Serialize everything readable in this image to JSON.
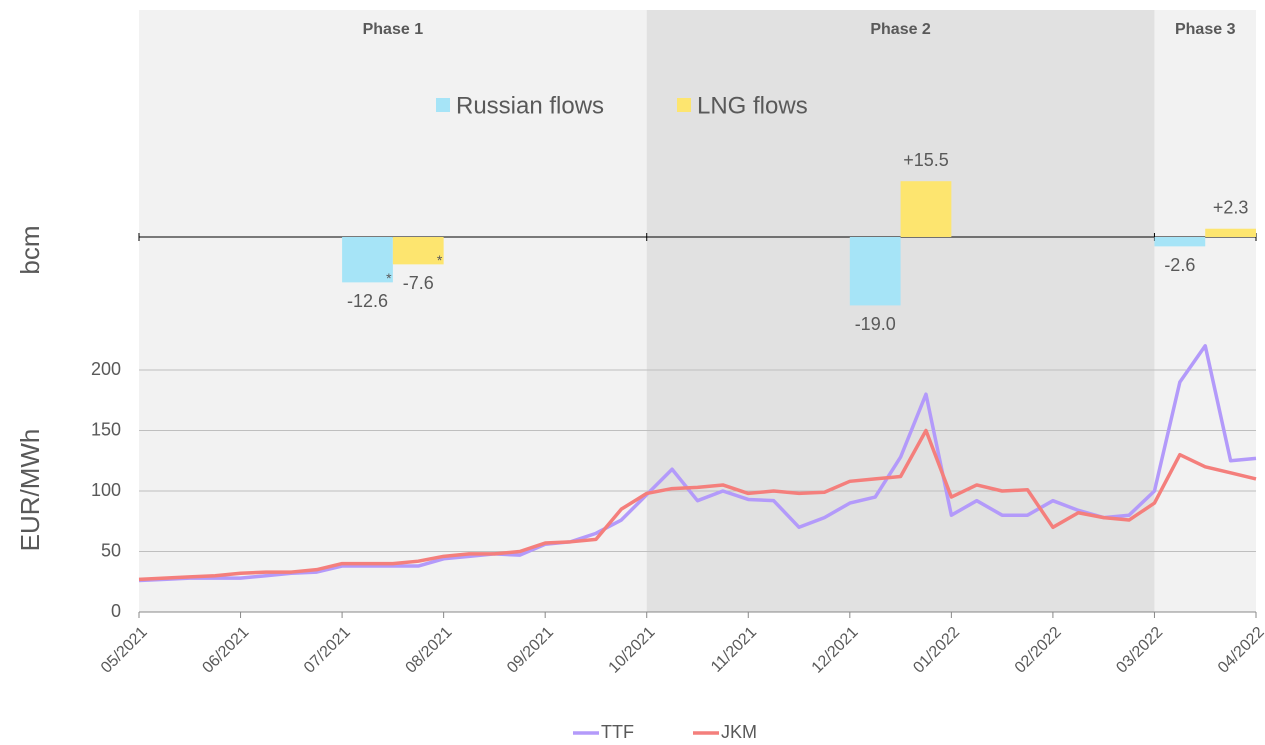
{
  "chart_data": [
    {
      "type": "bar",
      "ylabel": "bcm",
      "categories": [
        "Phase 1",
        "Phase 2",
        "Phase 3"
      ],
      "series": [
        {
          "name": "Russian flows",
          "color": "#a6e4f7",
          "values": [
            -12.6,
            -19.0,
            -2.6
          ],
          "value_labels": [
            "-12.6",
            "-19.0",
            "-2.6"
          ]
        },
        {
          "name": "LNG flows",
          "color": "#fde56f",
          "values": [
            -7.6,
            15.5,
            2.3
          ],
          "value_labels": [
            "-7.6",
            "+15.5",
            "+2.3"
          ]
        }
      ],
      "annotations": [
        "*",
        "*"
      ],
      "ylim": [
        -30,
        50
      ]
    },
    {
      "type": "line",
      "ylabel": "EUR/MWh",
      "x": [
        0,
        0.25,
        0.5,
        0.75,
        1,
        1.25,
        1.5,
        1.75,
        2,
        2.25,
        2.5,
        2.75,
        3,
        3.25,
        3.5,
        3.75,
        4,
        4.25,
        4.5,
        4.75,
        5,
        5.25,
        5.5,
        5.75,
        6,
        6.25,
        6.5,
        6.75,
        7,
        7.25,
        7.5,
        7.75,
        8,
        8.25,
        8.5,
        8.75,
        9,
        9.25,
        9.5,
        9.75,
        10,
        10.25,
        10.5,
        10.75,
        11
      ],
      "series": [
        {
          "name": "TTF",
          "color": "#b39afa",
          "values": [
            26,
            27,
            28,
            28,
            28,
            30,
            32,
            33,
            38,
            38,
            38,
            38,
            44,
            46,
            48,
            47,
            56,
            58,
            65,
            76,
            97,
            118,
            92,
            100,
            93,
            92,
            70,
            78,
            90,
            95,
            128,
            180,
            80,
            92,
            80,
            80,
            92,
            84,
            78,
            80,
            100,
            190,
            220,
            125,
            127
          ]
        },
        {
          "name": "JKM",
          "color": "#f47f7c",
          "values": [
            27,
            28,
            29,
            30,
            32,
            33,
            33,
            35,
            40,
            40,
            40,
            42,
            46,
            48,
            48,
            50,
            57,
            58,
            60,
            85,
            98,
            102,
            103,
            105,
            98,
            100,
            98,
            99,
            108,
            110,
            112,
            150,
            95,
            105,
            100,
            101,
            70,
            82,
            78,
            76,
            90,
            130,
            120,
            115,
            110
          ]
        }
      ],
      "xlim": [
        0,
        11
      ],
      "xticks": [
        {
          "value": 0,
          "label": "05/2021"
        },
        {
          "value": 1,
          "label": "06/2021"
        },
        {
          "value": 2,
          "label": "07/2021"
        },
        {
          "value": 3,
          "label": "08/2021"
        },
        {
          "value": 4,
          "label": "09/2021"
        },
        {
          "value": 5,
          "label": "10/2021"
        },
        {
          "value": 6,
          "label": "11/2021"
        },
        {
          "value": 7,
          "label": "12/2021"
        },
        {
          "value": 8,
          "label": "01/2022"
        },
        {
          "value": 9,
          "label": "02/2022"
        },
        {
          "value": 10,
          "label": "03/2022"
        },
        {
          "value": 11,
          "label": "04/2022"
        }
      ],
      "ylim": [
        0,
        200
      ],
      "yticks": [
        0,
        50,
        100,
        150,
        200
      ],
      "grid": true
    }
  ]
}
